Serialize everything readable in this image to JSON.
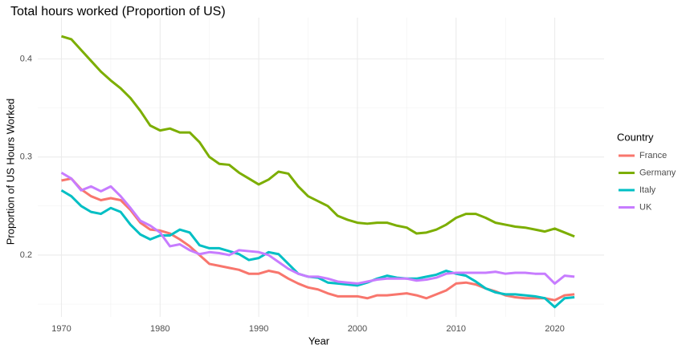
{
  "chart_data": {
    "type": "line",
    "title": "Total hours worked (Proportion of US)",
    "x_label": "Year",
    "y_label": "Proportion of US Hours Worked",
    "legend_title": "Country",
    "legend_position": "right",
    "grid": true,
    "x": [
      1970,
      1971,
      1972,
      1973,
      1974,
      1975,
      1976,
      1977,
      1978,
      1979,
      1980,
      1981,
      1982,
      1983,
      1984,
      1985,
      1986,
      1987,
      1988,
      1989,
      1990,
      1991,
      1992,
      1993,
      1994,
      1995,
      1996,
      1997,
      1998,
      1999,
      2000,
      2001,
      2002,
      2003,
      2004,
      2005,
      2006,
      2007,
      2008,
      2009,
      2010,
      2011,
      2012,
      2013,
      2014,
      2015,
      2016,
      2017,
      2018,
      2019,
      2020,
      2021,
      2022
    ],
    "xlim": [
      1967.6,
      2025
    ],
    "xticks": [
      1970,
      1980,
      1990,
      2000,
      2010,
      2020
    ],
    "minor_xticks": [
      1975,
      1985,
      1995,
      2005,
      2015
    ],
    "ylim": [
      0.137,
      0.442
    ],
    "yticks": [
      0.2,
      0.3,
      0.4
    ],
    "minor_yticks": [
      0.15,
      0.25,
      0.35
    ],
    "series": [
      {
        "name": "France",
        "color": "#F8766D",
        "values": [
          0.276,
          0.278,
          0.267,
          0.26,
          0.256,
          0.258,
          0.256,
          0.246,
          0.233,
          0.226,
          0.225,
          0.222,
          0.216,
          0.209,
          0.2,
          0.191,
          0.189,
          0.187,
          0.185,
          0.181,
          0.181,
          0.184,
          0.182,
          0.176,
          0.171,
          0.167,
          0.165,
          0.161,
          0.158,
          0.158,
          0.158,
          0.156,
          0.159,
          0.159,
          0.16,
          0.161,
          0.159,
          0.156,
          0.16,
          0.164,
          0.171,
          0.172,
          0.17,
          0.166,
          0.163,
          0.159,
          0.157,
          0.156,
          0.156,
          0.156,
          0.154,
          0.159,
          0.16
        ]
      },
      {
        "name": "Germany",
        "color": "#7CAE00",
        "values": [
          0.423,
          0.42,
          0.409,
          0.398,
          0.387,
          0.378,
          0.37,
          0.36,
          0.347,
          0.332,
          0.327,
          0.329,
          0.325,
          0.325,
          0.315,
          0.3,
          0.293,
          0.292,
          0.284,
          0.278,
          0.272,
          0.277,
          0.285,
          0.283,
          0.27,
          0.26,
          0.255,
          0.25,
          0.24,
          0.236,
          0.233,
          0.232,
          0.233,
          0.233,
          0.23,
          0.228,
          0.222,
          0.223,
          0.226,
          0.231,
          0.238,
          0.242,
          0.242,
          0.238,
          0.233,
          0.231,
          0.229,
          0.228,
          0.226,
          0.224,
          0.227,
          0.223,
          0.219
        ]
      },
      {
        "name": "Italy",
        "color": "#00BFC4",
        "values": [
          0.266,
          0.26,
          0.25,
          0.244,
          0.242,
          0.248,
          0.244,
          0.231,
          0.221,
          0.216,
          0.22,
          0.22,
          0.226,
          0.223,
          0.21,
          0.207,
          0.207,
          0.204,
          0.201,
          0.195,
          0.197,
          0.203,
          0.201,
          0.191,
          0.181,
          0.178,
          0.177,
          0.172,
          0.171,
          0.17,
          0.169,
          0.172,
          0.176,
          0.179,
          0.177,
          0.176,
          0.176,
          0.178,
          0.18,
          0.184,
          0.181,
          0.179,
          0.173,
          0.166,
          0.162,
          0.16,
          0.16,
          0.159,
          0.158,
          0.156,
          0.147,
          0.156,
          0.157
        ]
      },
      {
        "name": "UK",
        "color": "#C77CFF",
        "values": [
          0.284,
          0.278,
          0.266,
          0.27,
          0.265,
          0.27,
          0.26,
          0.248,
          0.235,
          0.23,
          0.223,
          0.209,
          0.211,
          0.205,
          0.201,
          0.203,
          0.202,
          0.2,
          0.205,
          0.204,
          0.203,
          0.2,
          0.193,
          0.186,
          0.181,
          0.178,
          0.178,
          0.176,
          0.173,
          0.172,
          0.171,
          0.173,
          0.175,
          0.176,
          0.176,
          0.176,
          0.174,
          0.175,
          0.177,
          0.181,
          0.182,
          0.182,
          0.182,
          0.182,
          0.183,
          0.181,
          0.182,
          0.182,
          0.181,
          0.181,
          0.171,
          0.179,
          0.178
        ]
      }
    ]
  }
}
